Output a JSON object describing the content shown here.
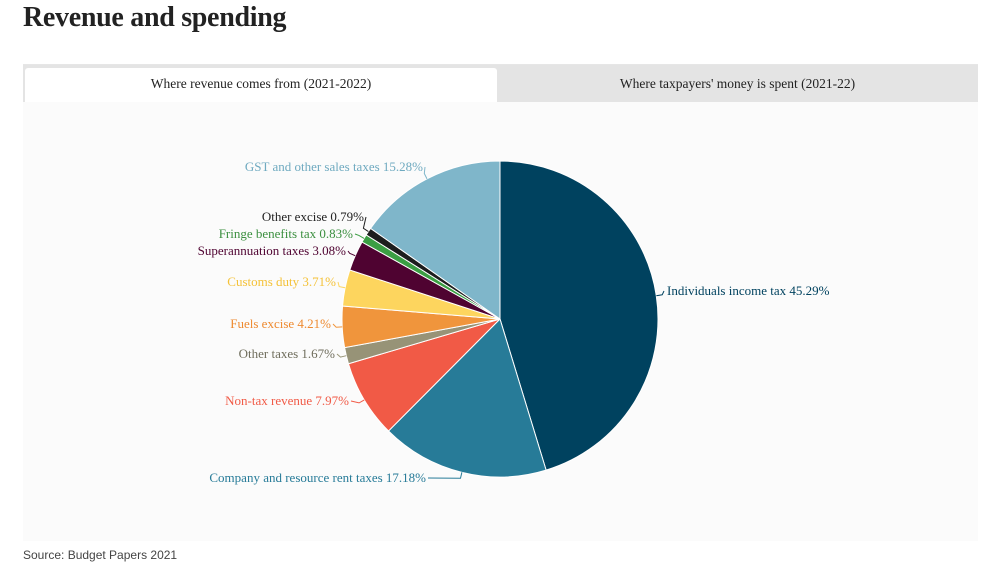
{
  "page": {
    "title": "Revenue and spending",
    "source": "Source: Budget Papers 2021"
  },
  "tabs": [
    {
      "label": "Where revenue comes from (2021-2022)",
      "active": true
    },
    {
      "label": "Where taxpayers' money is spent (2021-22)",
      "active": false
    }
  ],
  "chart_data": {
    "type": "pie",
    "title": "",
    "slices": [
      {
        "label": "Individuals income tax 45.29%",
        "value": 45.29,
        "color": "#00425f"
      },
      {
        "label": "Company and resource rent taxes 17.18%",
        "value": 17.18,
        "color": "#277b98"
      },
      {
        "label": "Non-tax revenue 7.97%",
        "value": 7.97,
        "color": "#f15a46"
      },
      {
        "label": "Other taxes 1.67%",
        "value": 1.67,
        "color": "#979377"
      },
      {
        "label": "Fuels excise 4.21%",
        "value": 4.21,
        "color": "#f0953c"
      },
      {
        "label": "Customs duty 3.71%",
        "value": 3.71,
        "color": "#fdd55e"
      },
      {
        "label": "Superannuation taxes 3.08%",
        "value": 3.08,
        "color": "#4f0331"
      },
      {
        "label": "Fringe benefits tax 0.83%",
        "value": 0.83,
        "color": "#3b9e43"
      },
      {
        "label": "Other excise 0.79%",
        "value": 0.79,
        "color": "#1d1d1d"
      },
      {
        "label": "GST and other sales taxes 15.28%",
        "value": 15.28,
        "color": "#7fb6ca"
      }
    ],
    "label_colors": {
      "Individuals income tax 45.29%": "#00425f",
      "Company and resource rent taxes 17.18%": "#277b98",
      "Non-tax revenue 7.97%": "#f15a46",
      "Other taxes 1.67%": "#6f6d5c",
      "Fuels excise 4.21%": "#ee8a30",
      "Customs duty 3.71%": "#f4c239",
      "Superannuation taxes 3.08%": "#4f0331",
      "Fringe benefits tax 0.83%": "#3b8f3f",
      "Other excise 0.79%": "#222222",
      "GST and other sales taxes 15.28%": "#6faac0"
    }
  }
}
